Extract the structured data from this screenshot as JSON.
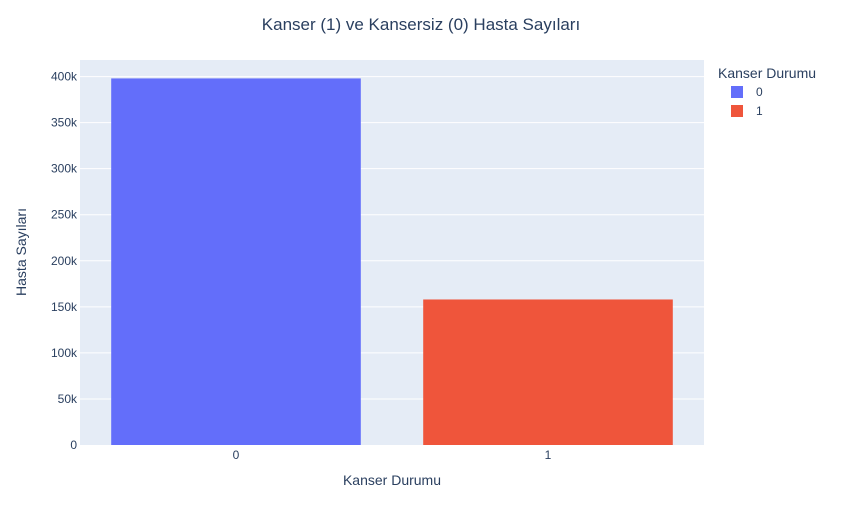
{
  "chart_data": {
    "type": "bar",
    "title": "Kanser (1) ve Kansersiz (0) Hasta Sayıları",
    "xlabel": "Kanser Durumu",
    "ylabel": "Hasta Sayıları",
    "categories": [
      "0",
      "1"
    ],
    "series": [
      {
        "name": "0",
        "category": "0",
        "value": 398000,
        "color": "#636efa"
      },
      {
        "name": "1",
        "category": "1",
        "value": 158000,
        "color": "#ef553b"
      }
    ],
    "ylim": [
      0,
      418000
    ],
    "yticks": [
      0,
      50000,
      100000,
      150000,
      200000,
      250000,
      300000,
      350000,
      400000
    ],
    "ytick_labels": [
      "0",
      "50k",
      "100k",
      "150k",
      "200k",
      "250k",
      "300k",
      "350k",
      "400k"
    ],
    "grid": true,
    "plot_bgcolor": "#e5ecf6",
    "legend": {
      "title": "Kanser Durumu",
      "placement": "top-right"
    }
  }
}
